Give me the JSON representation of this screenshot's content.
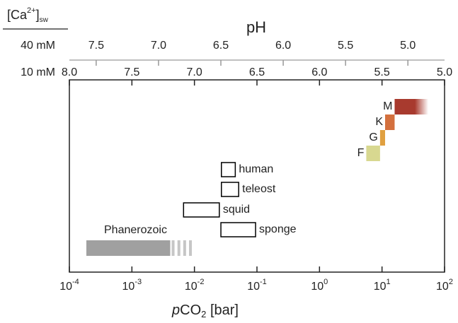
{
  "chart_data": {
    "type": "range",
    "xlabel": [
      "p",
      "CO",
      "2",
      " [bar]"
    ],
    "xscale": "log",
    "xlim": [
      0.0001,
      100
    ],
    "xticks": [
      {
        "value": 0.0001,
        "label": "10",
        "exponent": "-4"
      },
      {
        "value": 0.001,
        "label": "10",
        "exponent": "-3"
      },
      {
        "value": 0.01,
        "label": "10",
        "exponent": "-2"
      },
      {
        "value": 0.1,
        "label": "10",
        "exponent": "-1"
      },
      {
        "value": 1,
        "label": "10",
        "exponent": "0"
      },
      {
        "value": 10,
        "label": "10",
        "exponent": "1"
      },
      {
        "value": 100,
        "label": "10",
        "exponent": "2"
      }
    ],
    "ca_label": [
      "[Ca",
      "2+",
      "]",
      "sw"
    ],
    "ph_title": "pH",
    "ph_axes": [
      {
        "name": "10 mM",
        "color": "#222222",
        "xlim": [
          8,
          5
        ],
        "xticks": [
          {
            "value": 8,
            "label": "8.0"
          },
          7.5,
          {
            "value": 7,
            "label": "7.0"
          },
          6.5,
          {
            "value": 6,
            "label": "6.0"
          },
          5.5,
          {
            "value": 5,
            "label": "5.0"
          }
        ]
      },
      {
        "name": "40 mM",
        "color": "#999999",
        "xlim": [
          7.715,
          4.706
        ],
        "xticks": [
          7.5,
          {
            "value": 7,
            "label": "7.0"
          },
          6.5,
          {
            "value": 6,
            "label": "6.0"
          },
          5.5,
          {
            "value": 5,
            "label": "5.0"
          }
        ]
      }
    ],
    "series": [
      {
        "name": "M",
        "color": "#a83a2e",
        "values": [
          15.9,
          55
        ],
        "fade": true
      },
      {
        "name": "K",
        "color": "#d4703e",
        "values": [
          11.2,
          15.9
        ]
      },
      {
        "name": "G",
        "color": "#e0a040",
        "values": [
          9.3,
          11.2
        ]
      },
      {
        "name": "F",
        "color": "#d8d890",
        "values": [
          5.6,
          9.3
        ]
      },
      {
        "name": "human",
        "color": "#000000",
        "values": [
          0.027,
          0.045
        ],
        "outline": true
      },
      {
        "name": "teleost",
        "color": "#000000",
        "values": [
          0.027,
          0.051
        ],
        "outline": true
      },
      {
        "name": "squid",
        "color": "#000000",
        "values": [
          0.0067,
          0.025
        ],
        "outline": true
      },
      {
        "name": "sponge",
        "color": "#000000",
        "values": [
          0.0265,
          0.095
        ],
        "outline": true
      },
      {
        "name": "Phanerozoic",
        "color": "#a0a0a0",
        "values": [
          0.000187,
          0.0041
        ],
        "dashed_to": 0.0096
      }
    ]
  }
}
